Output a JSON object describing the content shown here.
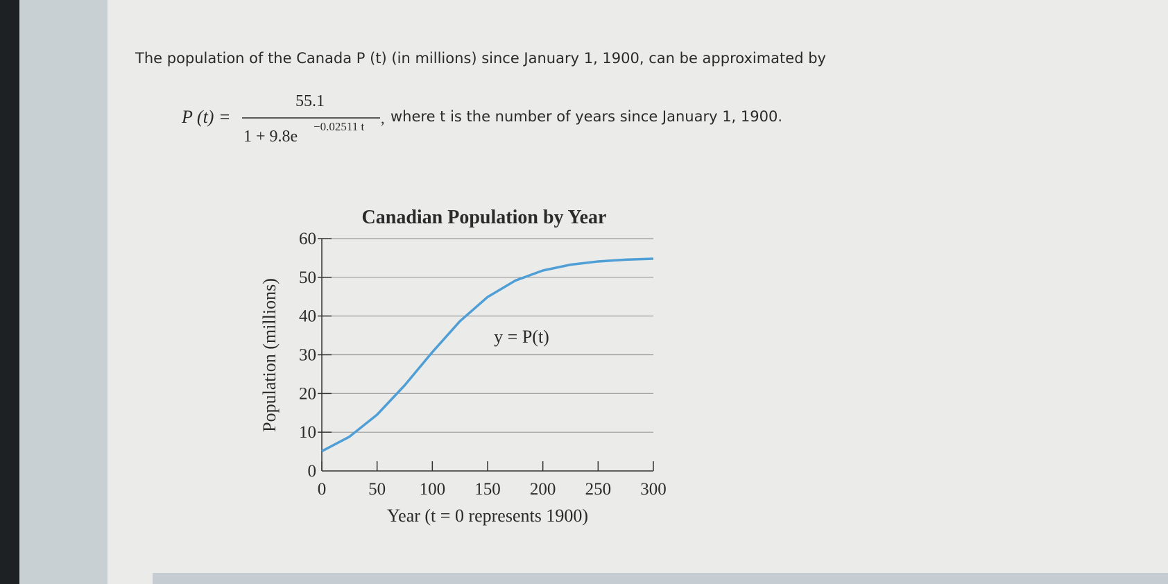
{
  "question": {
    "intro": "The population of the Canada P (t) (in millions) since January 1, 1900, can be approximated by",
    "formula": {
      "lhs": "P (t) =",
      "numerator": "55.1",
      "denominator": "1 + 9.8e",
      "exponent": "−0.02511 t",
      "comma": ","
    },
    "after": "where t is the number of years since January 1, 1900."
  },
  "chart_data": {
    "type": "line",
    "title": "Canadian Population by Year",
    "x_label": "Year (t = 0 represents 1900)",
    "y_label": "Population (millions)",
    "annotation": "y = P(t)",
    "x": [
      0,
      25,
      50,
      75,
      100,
      125,
      150,
      175,
      200,
      225,
      250,
      275,
      300
    ],
    "series": [
      {
        "name": "P(t)",
        "color": "#4f9fd6",
        "values": [
          5.1,
          8.84,
          14.53,
          22.12,
          30.69,
          38.68,
          44.92,
          49.15,
          51.76,
          53.26,
          54.1,
          54.56,
          54.81
        ]
      }
    ],
    "xlim": [
      0,
      300
    ],
    "xticks": [
      0,
      50,
      100,
      150,
      200,
      250,
      300
    ],
    "ylim": [
      0,
      60
    ],
    "yticks": [
      0,
      10,
      20,
      30,
      40,
      50,
      60
    ],
    "grid": true
  }
}
